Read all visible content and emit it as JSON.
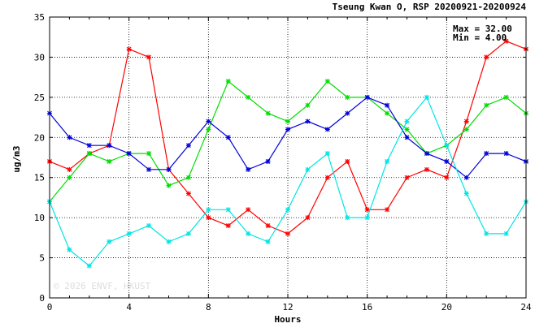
{
  "chart_data": {
    "type": "line",
    "title": "Tseung Kwan O, RSP 20200921-20200924",
    "xlabel": "Hours",
    "ylabel": "ug/m3",
    "xlim": [
      0,
      24
    ],
    "ylim": [
      0,
      35
    ],
    "x_ticks": [
      0,
      4,
      8,
      12,
      16,
      20,
      24
    ],
    "y_ticks": [
      0,
      5,
      10,
      15,
      20,
      25,
      30,
      35
    ],
    "grid": true,
    "stats": {
      "max_label": "Max = 32.00",
      "min_label": "Min =  4.00"
    },
    "watermark": "© 2026 ENVF, HKUST",
    "x": [
      0,
      1,
      2,
      3,
      4,
      5,
      6,
      7,
      8,
      9,
      10,
      11,
      12,
      13,
      14,
      15,
      16,
      17,
      18,
      19,
      20,
      21,
      22,
      23,
      24
    ],
    "series": [
      {
        "color": "#ff0000",
        "values": [
          17,
          16,
          18,
          19,
          31,
          30,
          16,
          13,
          10,
          9,
          11,
          9,
          8,
          10,
          15,
          17,
          11,
          11,
          15,
          16,
          15,
          22,
          30,
          32,
          31
        ]
      },
      {
        "color": "#00dd00",
        "values": [
          12,
          15,
          18,
          17,
          18,
          18,
          14,
          15,
          21,
          27,
          25,
          23,
          22,
          24,
          27,
          25,
          25,
          23,
          21,
          18,
          19,
          21,
          24,
          25,
          23
        ]
      },
      {
        "color": "#0000dd",
        "values": [
          23,
          20,
          19,
          19,
          18,
          16,
          16,
          19,
          22,
          20,
          16,
          17,
          21,
          22,
          21,
          23,
          25,
          24,
          20,
          18,
          17,
          15,
          18,
          18,
          17
        ]
      },
      {
        "color": "#00e5e5",
        "values": [
          12,
          6,
          4,
          7,
          8,
          9,
          7,
          8,
          11,
          11,
          8,
          7,
          11,
          16,
          18,
          10,
          10,
          17,
          22,
          25,
          19,
          13,
          8,
          8,
          12
        ]
      }
    ]
  }
}
